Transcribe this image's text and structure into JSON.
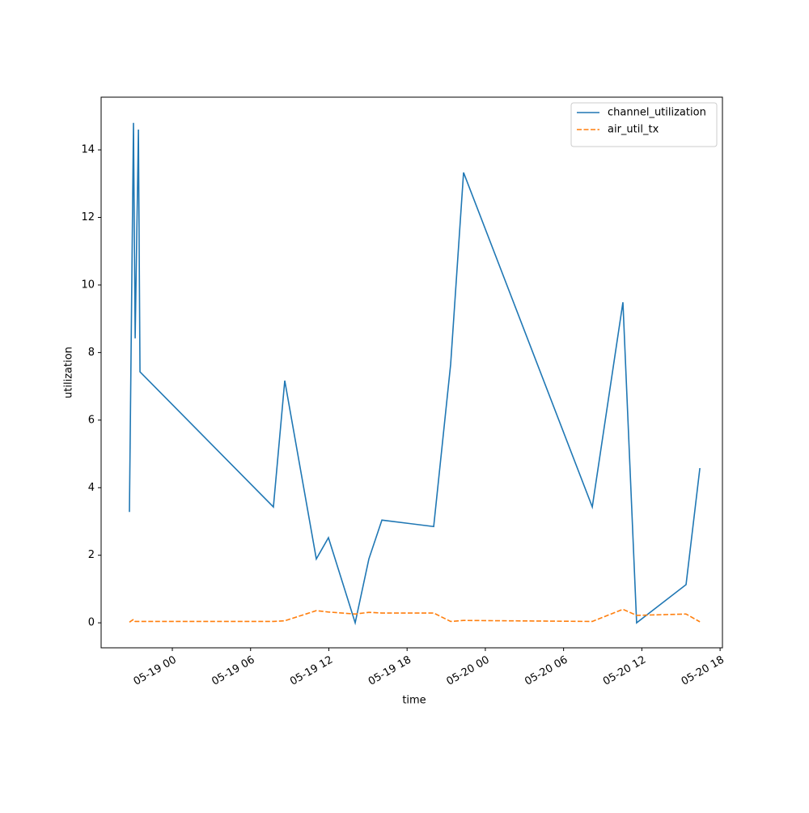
{
  "chart_data": {
    "type": "line",
    "x_label": "time",
    "y_label": "utilization",
    "x": [
      -3.29,
      -2.98,
      -2.85,
      -2.6,
      -2.48,
      7.75,
      8.62,
      11.04,
      11.97,
      14.02,
      15.07,
      16.07,
      20.04,
      21.34,
      22.33,
      32.2,
      34.55,
      35.6,
      39.39,
      40.45
    ],
    "series": [
      {
        "name": "channel_utilization",
        "color": "#1f77b4",
        "dash": "solid",
        "values": [
          3.28,
          14.8,
          8.42,
          14.6,
          7.43,
          3.43,
          7.17,
          1.89,
          2.52,
          0,
          1.89,
          3.04,
          2.85,
          7.65,
          13.33,
          3.43,
          9.49,
          0,
          1.13,
          4.58
        ]
      },
      {
        "name": "air_util_tx",
        "color": "#ff7f0e",
        "dash": "dashed",
        "values": [
          0.02,
          0.1,
          0.04,
          0.04,
          0.04,
          0.04,
          0.06,
          0.36,
          0.32,
          0.26,
          0.31,
          0.29,
          0.29,
          0.04,
          0.07,
          0.04,
          0.4,
          0.22,
          0.26,
          0.03
        ]
      }
    ],
    "xlim": [
      -5.46,
      42.18
    ],
    "xticks": [
      {
        "value": 0,
        "label": "05-19 00"
      },
      {
        "value": 6,
        "label": "05-19 06"
      },
      {
        "value": 12,
        "label": "05-19 12"
      },
      {
        "value": 18,
        "label": "05-19 18"
      },
      {
        "value": 24,
        "label": "05-20 00"
      },
      {
        "value": 30,
        "label": "05-20 06"
      },
      {
        "value": 36,
        "label": "05-20 12"
      },
      {
        "value": 42,
        "label": "05-20 18"
      }
    ],
    "ylim": [
      -0.74,
      15.56
    ],
    "yticks": [
      0,
      2,
      4,
      6,
      8,
      10,
      12,
      14
    ],
    "grid": false,
    "legend": "upper right"
  }
}
